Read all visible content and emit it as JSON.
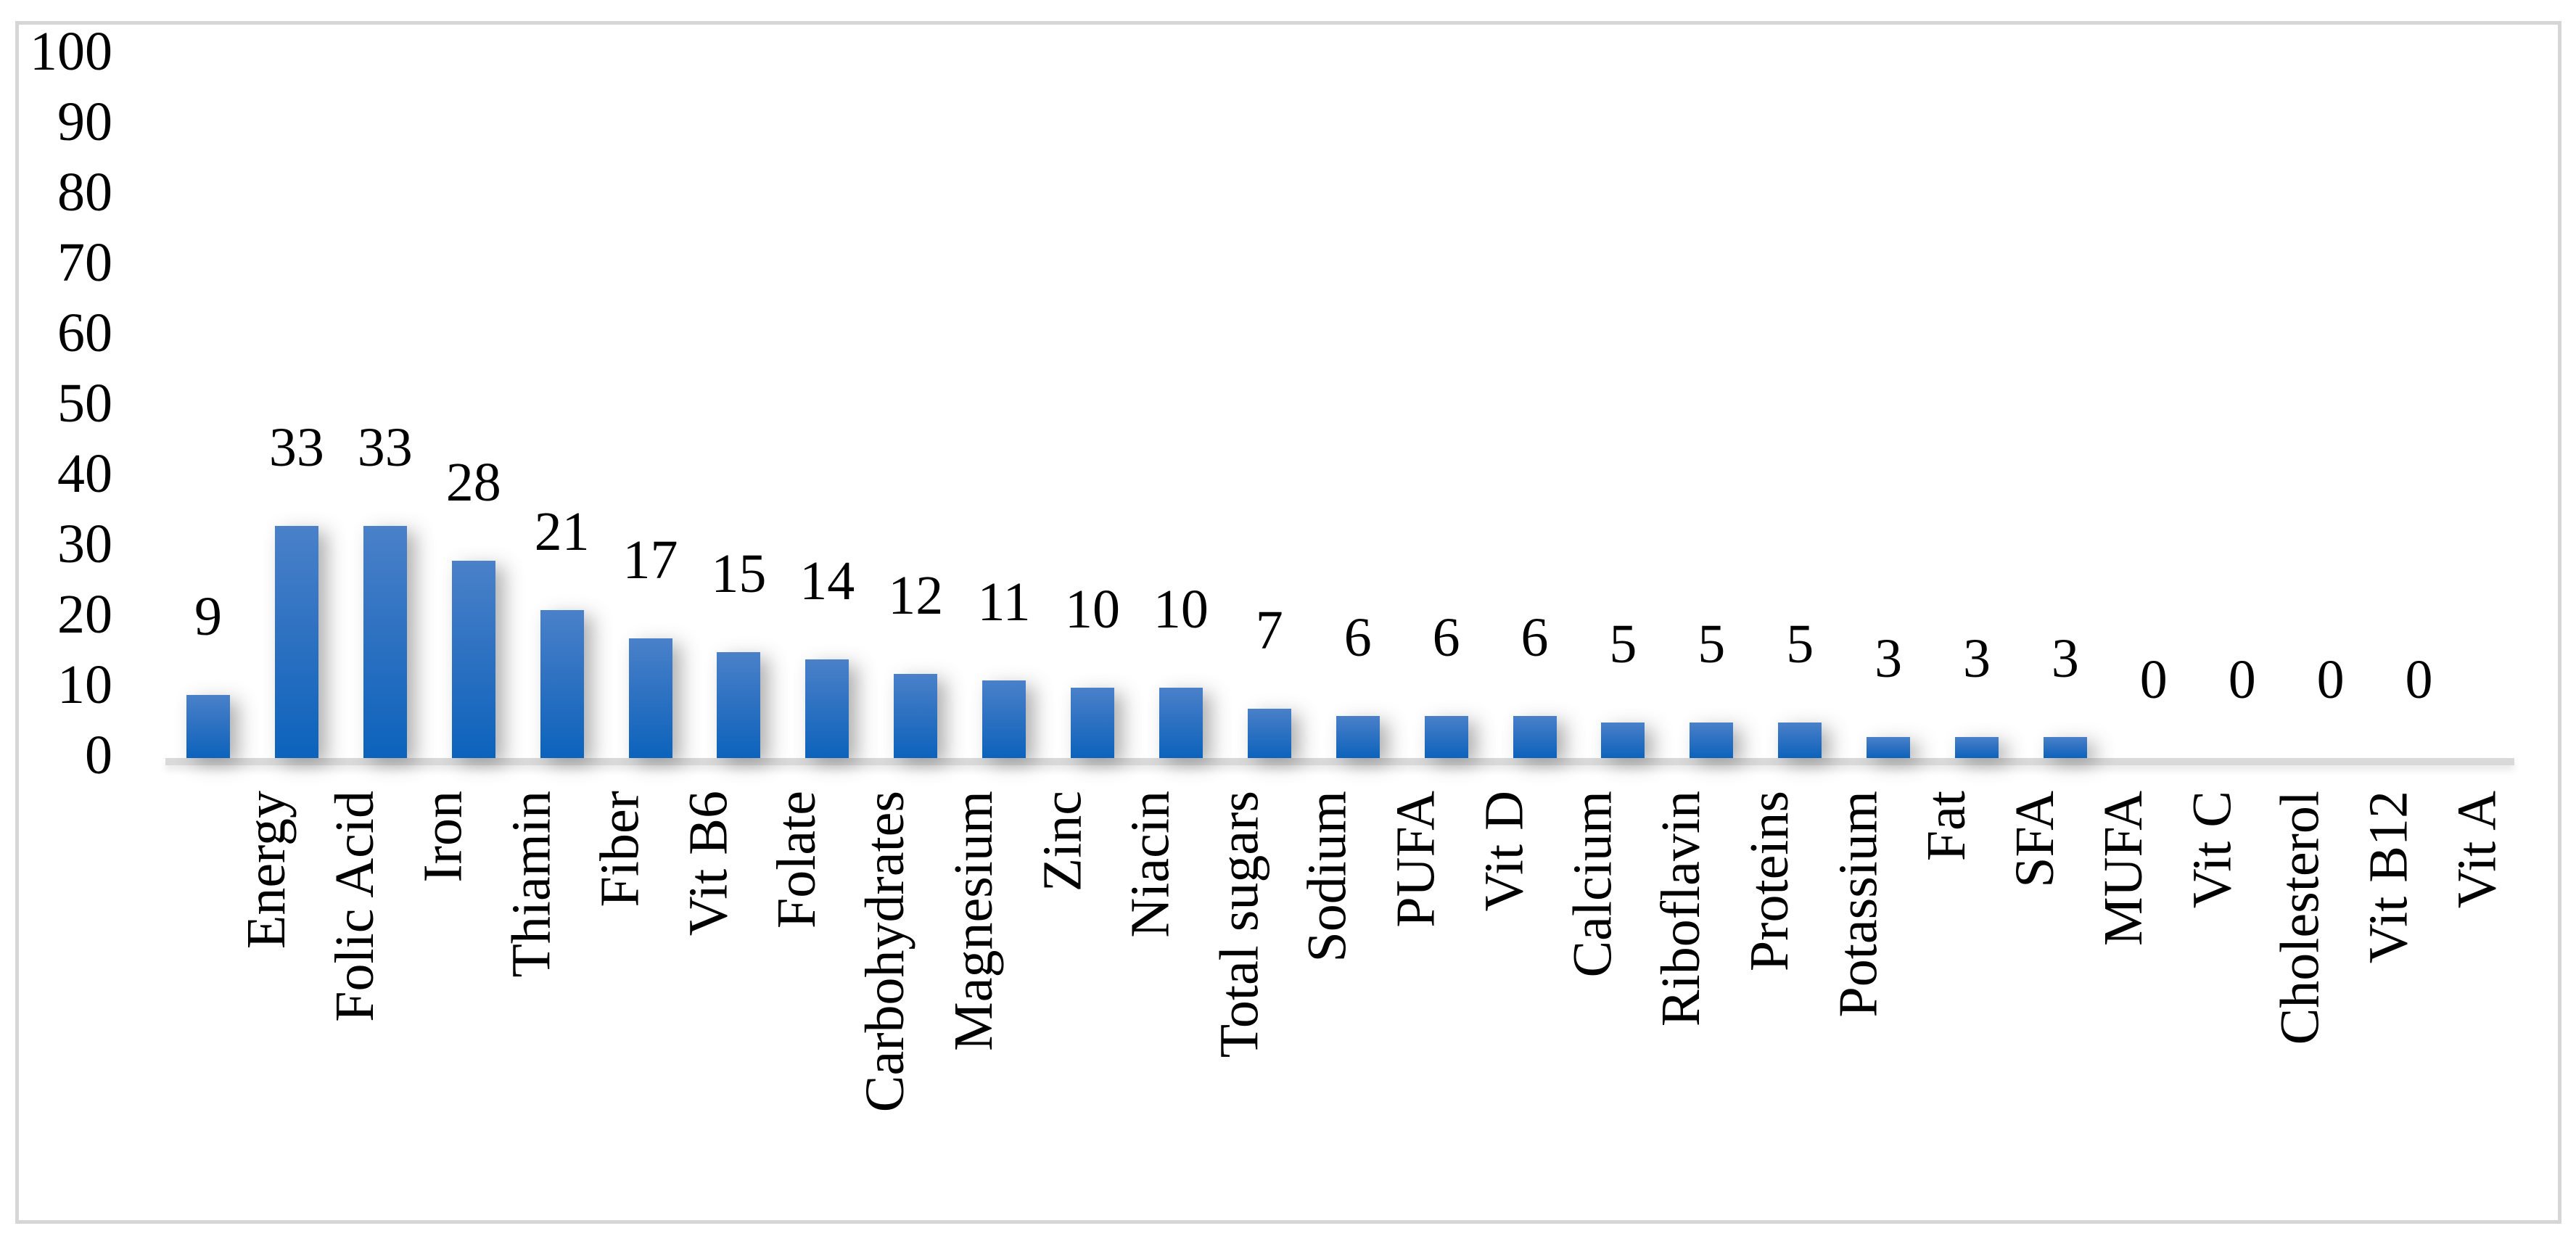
{
  "chart_data": {
    "type": "bar",
    "title": "",
    "xlabel": "",
    "ylabel": "",
    "categories": [
      "Energy",
      "Folic Acid",
      "Iron",
      "Thiamin",
      "Fiber",
      "Vit B6",
      "Folate",
      "Carbohydrates",
      "Magnesium",
      "Zinc",
      "Niacin",
      "Total sugars",
      "Sodium",
      "PUFA",
      "Vit D",
      "Calcium",
      "Riboflavin",
      "Proteins",
      "Potassium",
      "Fat",
      "SFA",
      "MUFA",
      "Vit C",
      "Cholesterol",
      "Vit B12",
      "Vit A"
    ],
    "values": [
      9,
      33,
      33,
      28,
      21,
      17,
      15,
      14,
      12,
      11,
      10,
      10,
      7,
      6,
      6,
      6,
      5,
      5,
      5,
      3,
      3,
      3,
      0,
      0,
      0,
      0
    ],
    "data_labels": [
      "9",
      "33",
      "33",
      "28",
      "21",
      "17",
      "15",
      "14",
      "12",
      "11",
      "10",
      "10",
      "7",
      "6",
      "6",
      "6",
      "5",
      "5",
      "5",
      "3",
      "3",
      "3",
      "0",
      "0",
      "0",
      "0"
    ],
    "yticks": [
      0,
      10,
      20,
      30,
      40,
      50,
      60,
      70,
      80,
      90,
      100
    ],
    "ylim": [
      0,
      100
    ],
    "grid": false,
    "legend_position": "none",
    "category_label_rotation_degrees": 90,
    "colors": {
      "bar_gradient_top": "#4a81c9",
      "bar_gradient_bottom": "#0c63bc",
      "baseline": "#d9d9d9",
      "frame_border": "#d6d6d6",
      "text": "#000000",
      "background": "#ffffff"
    }
  }
}
